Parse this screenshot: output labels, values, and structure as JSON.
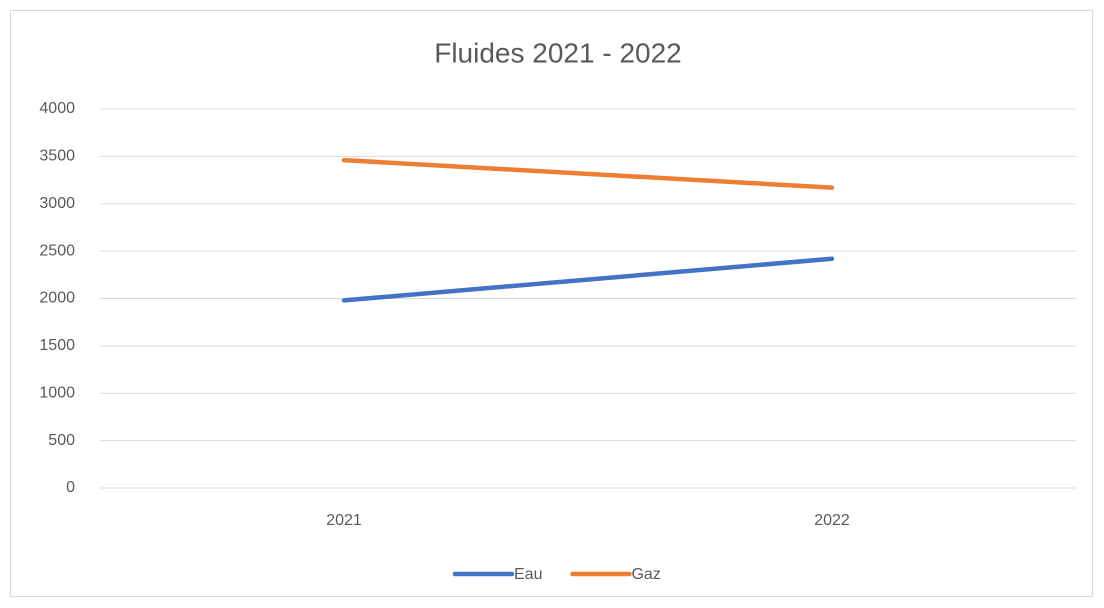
{
  "chart_data": {
    "type": "line",
    "title": "Fluides 2021 - 2022",
    "categories": [
      "2021",
      "2022"
    ],
    "series": [
      {
        "name": "Eau",
        "color": "#4472c4",
        "values": [
          1980,
          2420
        ]
      },
      {
        "name": "Gaz",
        "color": "#ed7d31",
        "values": [
          3460,
          3170
        ]
      }
    ],
    "ylim": [
      0,
      4000
    ],
    "yticks": [
      0,
      500,
      1000,
      1500,
      2000,
      2500,
      3000,
      3500,
      4000
    ],
    "grid": true,
    "legend": "bottom"
  }
}
